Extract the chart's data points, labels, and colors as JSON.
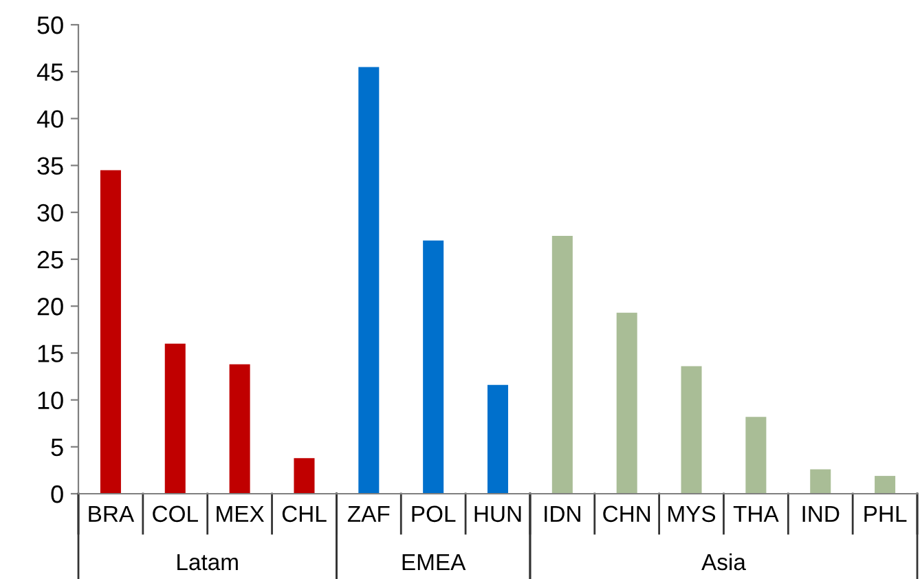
{
  "chart_data": {
    "type": "bar",
    "categories": [
      "BRA",
      "COL",
      "MEX",
      "CHL",
      "ZAF",
      "POL",
      "HUN",
      "IDN",
      "CHN",
      "MYS",
      "THA",
      "IND",
      "PHL"
    ],
    "series": [
      {
        "name": "Latam",
        "color": "#c00000",
        "values": [
          34.5,
          16.0,
          13.8,
          3.8,
          null,
          null,
          null,
          null,
          null,
          null,
          null,
          null,
          null
        ]
      },
      {
        "name": "EMEA",
        "color": "#0070cc",
        "values": [
          null,
          null,
          null,
          null,
          45.5,
          27.0,
          11.6,
          null,
          null,
          null,
          null,
          null,
          null
        ]
      },
      {
        "name": "Asia",
        "color": "#a9bd96",
        "values": [
          null,
          null,
          null,
          null,
          null,
          null,
          null,
          27.5,
          19.3,
          13.6,
          8.2,
          2.6,
          1.9
        ]
      }
    ],
    "ylim": [
      0,
      50
    ],
    "yticks": [
      0,
      5,
      10,
      15,
      20,
      25,
      30,
      35,
      40,
      45,
      50
    ],
    "grid": false,
    "legend": false
  }
}
